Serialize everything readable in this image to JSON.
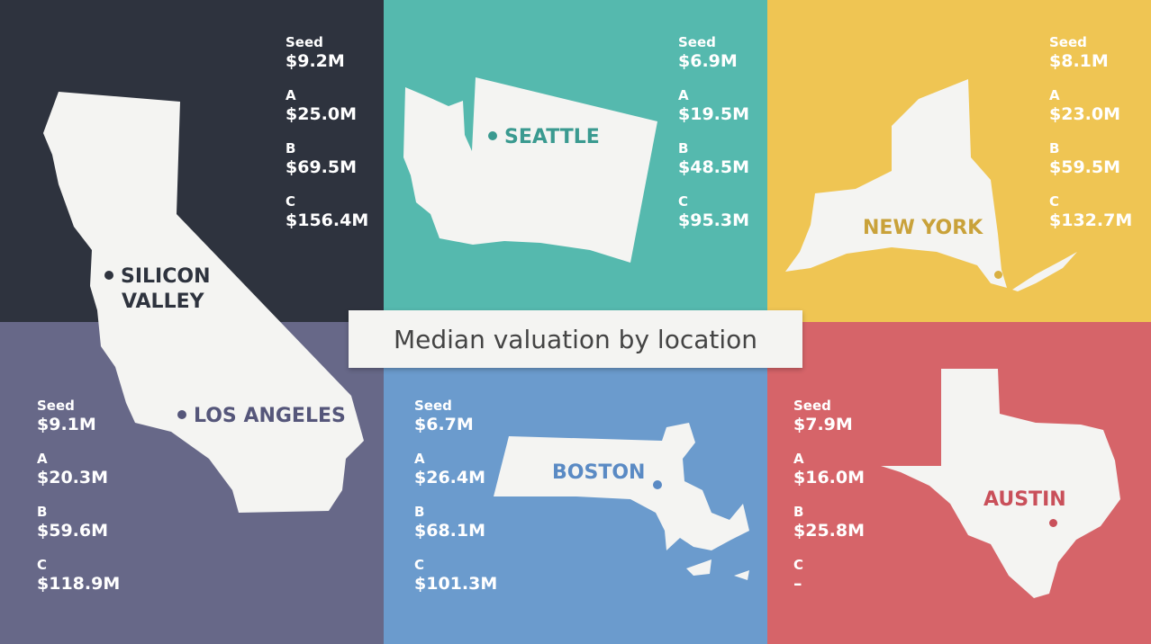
{
  "title": "Median valuation by location",
  "chart_data": {
    "type": "table",
    "title": "Median valuation by location",
    "rounds": [
      "Seed",
      "A",
      "B",
      "C"
    ],
    "locations": [
      {
        "key": "silicon_valley",
        "name": "SILICON VALLEY",
        "name_line1": "SILICON",
        "name_line2": "VALLEY",
        "values": [
          "$9.2M",
          "$25.0M",
          "$69.5M",
          "$156.4M"
        ],
        "numeric_millions": [
          9.2,
          25.0,
          69.5,
          156.4
        ],
        "color": "#2e333e"
      },
      {
        "key": "seattle",
        "name": "SEATTLE",
        "values": [
          "$6.9M",
          "$19.5M",
          "$48.5M",
          "$95.3M"
        ],
        "numeric_millions": [
          6.9,
          19.5,
          48.5,
          95.3
        ],
        "color": "#55b9ae"
      },
      {
        "key": "new_york",
        "name": "NEW YORK",
        "values": [
          "$8.1M",
          "$23.0M",
          "$59.5M",
          "$132.7M"
        ],
        "numeric_millions": [
          8.1,
          23.0,
          59.5,
          132.7
        ],
        "color": "#efc553"
      },
      {
        "key": "los_angeles",
        "name": "LOS ANGELES",
        "values": [
          "$9.1M",
          "$20.3M",
          "$59.6M",
          "$118.9M"
        ],
        "numeric_millions": [
          9.1,
          20.3,
          59.6,
          118.9
        ],
        "color": "#676888"
      },
      {
        "key": "boston",
        "name": "BOSTON",
        "values": [
          "$6.7M",
          "$26.4M",
          "$68.1M",
          "$101.3M"
        ],
        "numeric_millions": [
          6.7,
          26.4,
          68.1,
          101.3
        ],
        "color": "#6b9bcd"
      },
      {
        "key": "austin",
        "name": "AUSTIN",
        "values": [
          "$7.9M",
          "$16.0M",
          "$25.8M",
          "–"
        ],
        "numeric_millions": [
          7.9,
          16.0,
          25.8,
          null
        ],
        "color": "#d66469"
      }
    ]
  },
  "icons": {
    "silicon_valley": "california-map-icon",
    "seattle": "washington-map-icon",
    "new_york": "new-york-map-icon",
    "los_angeles": "california-map-icon",
    "boston": "massachusetts-map-icon",
    "austin": "texas-map-icon"
  }
}
